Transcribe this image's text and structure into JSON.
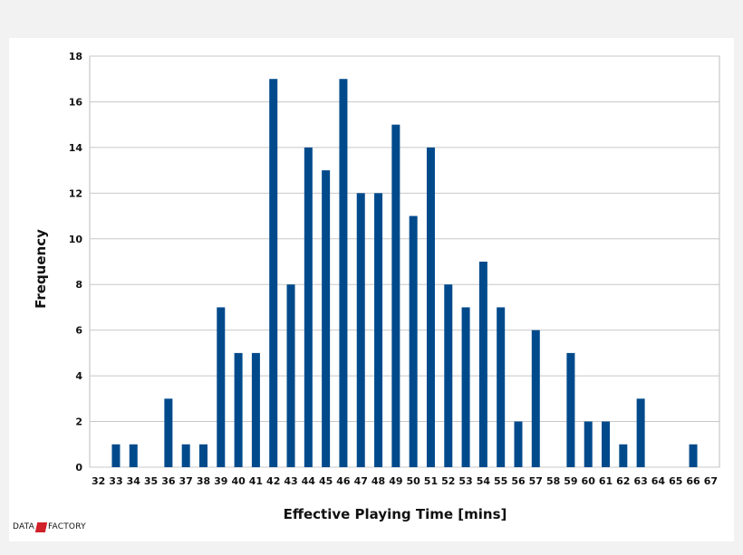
{
  "chart_data": {
    "type": "bar",
    "xlabel": "Effective Playing Time [mins]",
    "ylabel": "Frequency",
    "ylim": [
      0,
      18
    ],
    "yticks": [
      0,
      2,
      4,
      6,
      8,
      10,
      12,
      14,
      16,
      18
    ],
    "grid": "horizontal",
    "color": "#004a8c",
    "categories": [
      "32",
      "33",
      "34",
      "35",
      "36",
      "37",
      "38",
      "39",
      "40",
      "41",
      "42",
      "43",
      "44",
      "45",
      "46",
      "47",
      "48",
      "49",
      "50",
      "51",
      "52",
      "53",
      "54",
      "55",
      "56",
      "57",
      "58",
      "59",
      "60",
      "61",
      "62",
      "63",
      "64",
      "65",
      "66",
      "67"
    ],
    "values": [
      0,
      1,
      1,
      0,
      3,
      1,
      1,
      7,
      5,
      5,
      17,
      8,
      14,
      13,
      17,
      12,
      12,
      15,
      11,
      14,
      8,
      7,
      9,
      7,
      2,
      6,
      0,
      5,
      2,
      2,
      1,
      3,
      0,
      0,
      1,
      0
    ]
  },
  "watermark": {
    "left": "DATA",
    "right": "FACTORY",
    "flag_color": "#d0202a"
  }
}
